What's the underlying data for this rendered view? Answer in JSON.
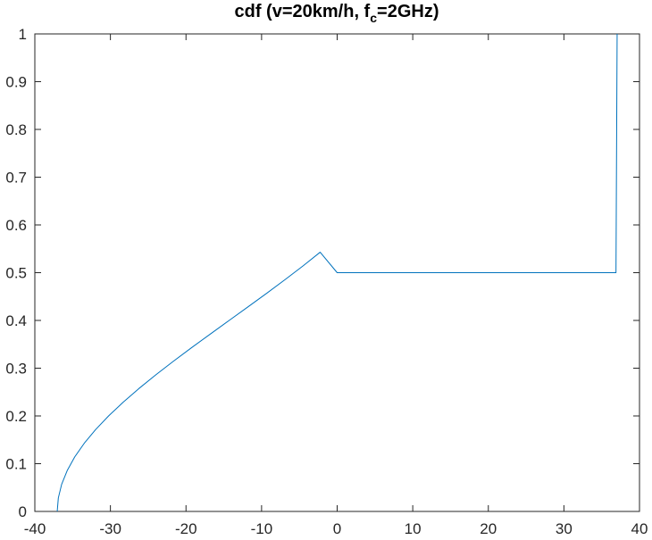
{
  "chart_data": {
    "type": "line",
    "title": {
      "prefix": "cdf (v=20km/h, f",
      "subscript": "c",
      "suffix": "=2GHz)"
    },
    "xlabel": "",
    "ylabel": "",
    "xlim": [
      -40,
      40
    ],
    "ylim": [
      0,
      1
    ],
    "xticks": [
      -40,
      -30,
      -20,
      -10,
      0,
      10,
      20,
      30,
      40
    ],
    "xtick_labels": [
      "-40",
      "-30",
      "-20",
      "-10",
      "0",
      "10",
      "20",
      "30",
      "40"
    ],
    "yticks": [
      0,
      0.1,
      0.2,
      0.3,
      0.4,
      0.5,
      0.6,
      0.7,
      0.8,
      0.9,
      1
    ],
    "ytick_labels": [
      "0",
      "0.1",
      "0.2",
      "0.3",
      "0.4",
      "0.5",
      "0.6",
      "0.7",
      "0.8",
      "0.9",
      "1"
    ],
    "grid": false,
    "box": true,
    "series": [
      {
        "color": "#0072BD",
        "x": [
          -37.04,
          -36.89,
          -36.45,
          -35.72,
          -34.72,
          -33.46,
          -31.96,
          -30.24,
          -28.33,
          -26.25,
          -24.02,
          -21.69,
          -19.27,
          -16.79,
          -14.29,
          -11.78,
          -9.3,
          -6.87,
          -4.51,
          -2.25,
          0,
          2.25,
          4.51,
          6.87,
          9.3,
          11.78,
          14.29,
          16.79,
          19.27,
          21.69,
          24.02,
          26.25,
          28.33,
          30.24,
          31.96,
          33.46,
          34.72,
          35.72,
          36.45,
          36.89,
          37.04
        ],
        "y": [
          0.0,
          0.0284,
          0.0569,
          0.0855,
          0.1142,
          0.1428,
          0.1714,
          0.2,
          0.2286,
          0.2571,
          0.2857,
          0.3143,
          0.3429,
          0.3714,
          0.4,
          0.4286,
          0.4571,
          0.4857,
          0.5143,
          0.5429,
          0.5,
          0.5,
          0.5,
          0.5,
          0.5,
          0.5,
          0.5,
          0.5,
          0.5,
          0.5,
          0.5,
          0.5,
          0.5,
          0.5,
          0.5,
          0.5,
          0.5,
          0.5,
          0.5,
          0.5,
          1.0
        ]
      }
    ]
  }
}
